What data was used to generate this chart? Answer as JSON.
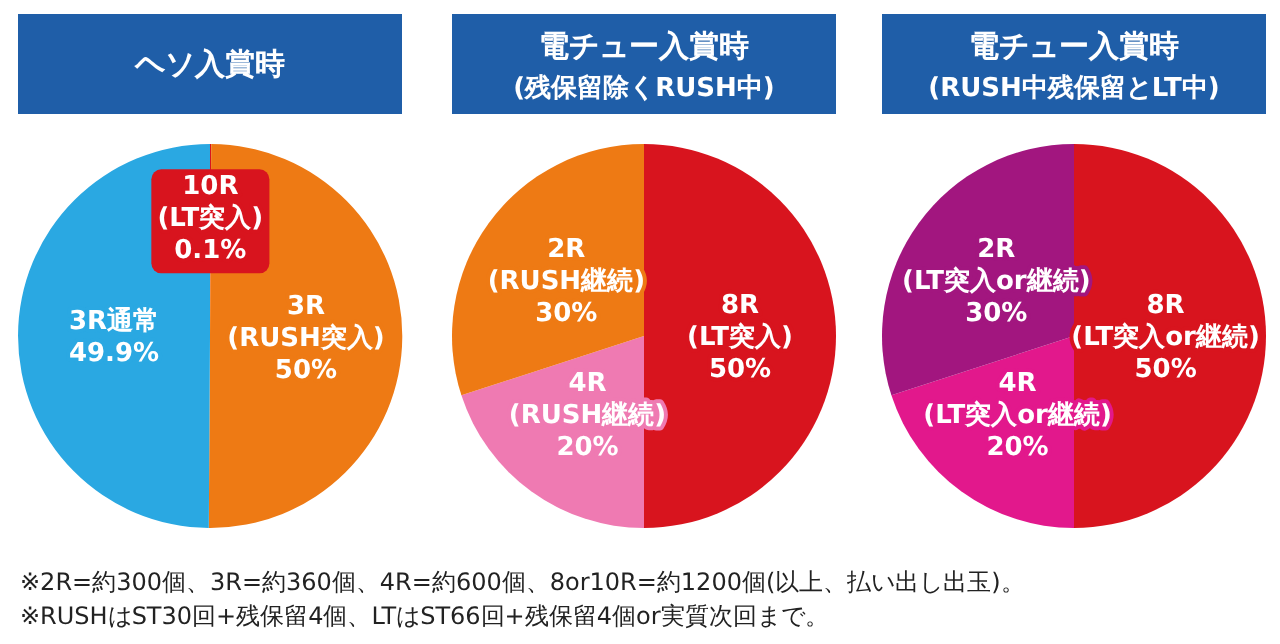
{
  "chart_data": [
    {
      "type": "pie",
      "title": "ヘソ入賞時",
      "categories": [
        "10R\n(LT突入)",
        "3R\n(RUSH突入)",
        "3R通常"
      ],
      "values": [
        0.1,
        50,
        49.9
      ],
      "value_labels": [
        "0.1%",
        "50%",
        "49.9%"
      ],
      "colors": [
        "#d8141e",
        "#ee7a14",
        "#2aa8e2"
      ],
      "annotations": [
        "※2R=約300個、3R=約360個、4R=約600個、8or10R=約1200個(以上、払い出し出玉)。",
        "※RUSHはST30回+残保留4個、LTはST66回+残保留4個or実質次回まで。"
      ]
    },
    {
      "type": "pie",
      "title": "電チュー入賞時",
      "subtitle": "(残保留除くRUSH中)",
      "categories": [
        "8R\n(LT突入)",
        "4R\n(RUSH継続)",
        "2R\n(RUSH継続)"
      ],
      "values": [
        50,
        20,
        30
      ],
      "value_labels": [
        "50%",
        "20%",
        "30%"
      ],
      "colors": [
        "#d8141e",
        "#ef7ab2",
        "#ee7a14"
      ]
    },
    {
      "type": "pie",
      "title": "電チュー入賞時",
      "subtitle": "(RUSH中残保留とLT中)",
      "categories": [
        "8R\n(LT突入or継続)",
        "4R\n(LT突入or継続)",
        "2R\n(LT突入or継続)"
      ],
      "values": [
        50,
        20,
        30
      ],
      "value_labels": [
        "50%",
        "20%",
        "30%"
      ],
      "colors": [
        "#d8141e",
        "#e2188c",
        "#a2167f"
      ]
    }
  ]
}
